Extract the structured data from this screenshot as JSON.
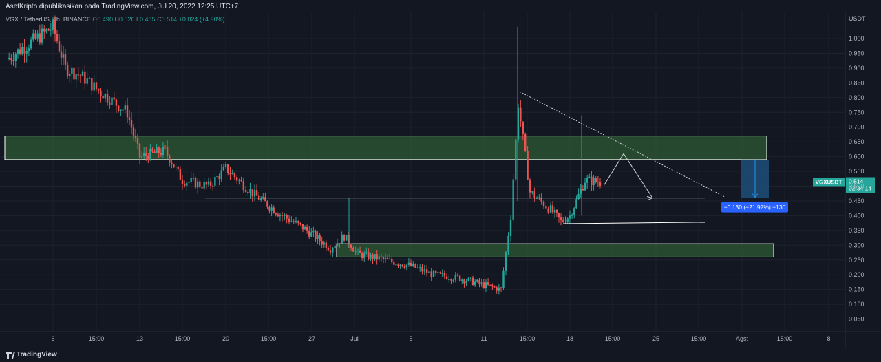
{
  "header": {
    "publisher": "AsetKripto dipublikasikan pada TradingView.com, Jul 20, 2022 12:25 UTC+7"
  },
  "legend": {
    "symbol": "VGX / TetherUS, 4h, BINANCE",
    "o_label": "O",
    "o_value": "0.490",
    "h_label": "H",
    "h_value": "0.526",
    "l_label": "L",
    "l_value": "0.485",
    "c_label": "C",
    "c_value": "0.514",
    "change": "+0.024 (+4.90%)"
  },
  "price_axis": {
    "currency": "USDT",
    "ticks": [
      "1.000",
      "0.950",
      "0.900",
      "0.850",
      "0.800",
      "0.750",
      "0.700",
      "0.650",
      "0.600",
      "0.550",
      "0.500",
      "0.450",
      "0.400",
      "0.350",
      "0.300",
      "0.250",
      "0.200",
      "0.150",
      "0.100",
      "0.050"
    ]
  },
  "time_axis": {
    "labels": [
      "6",
      "15:00",
      "13",
      "15:00",
      "20",
      "15:00",
      "27",
      "Jul",
      "5",
      "11",
      "15:00",
      "18",
      "15:00",
      "25",
      "15:00",
      "Agst",
      "15:00",
      "8"
    ]
  },
  "last_price": {
    "symbol": "VGXUSDT",
    "price": "0.514",
    "countdown": "02:34:14"
  },
  "measure_label": "−0.130 (−21.92%) −130",
  "footer": {
    "brand": "TradingView"
  },
  "colors": {
    "background": "#131722",
    "up": "#26a69a",
    "down": "#ef5350",
    "zone_fill": "#2e5a34",
    "measure_fill": "#1e4d78",
    "measure_label": "#2962ff"
  },
  "chart_data": {
    "type": "candlestick",
    "title": "VGX / TetherUS, 4h, BINANCE",
    "ylabel": "USDT",
    "ylim": [
      0.0,
      1.08
    ],
    "x_range": [
      "Jun 5",
      "Aug 8"
    ],
    "series_close_approx": [
      {
        "date": "Jun 5",
        "price": 0.93
      },
      {
        "date": "Jun 6",
        "price": 1.04
      },
      {
        "date": "Jun 7",
        "price": 0.9
      },
      {
        "date": "Jun 9",
        "price": 0.87
      },
      {
        "date": "Jun 10",
        "price": 0.83
      },
      {
        "date": "Jun 12",
        "price": 0.75
      },
      {
        "date": "Jun 13",
        "price": 0.6
      },
      {
        "date": "Jun 15",
        "price": 0.62
      },
      {
        "date": "Jun 16",
        "price": 0.52
      },
      {
        "date": "Jun 18",
        "price": 0.5
      },
      {
        "date": "Jun 20",
        "price": 0.56
      },
      {
        "date": "Jun 22",
        "price": 0.47
      },
      {
        "date": "Jun 24",
        "price": 0.4
      },
      {
        "date": "Jun 26",
        "price": 0.36
      },
      {
        "date": "Jun 28",
        "price": 0.29
      },
      {
        "date": "Jun 29",
        "price": 0.33
      },
      {
        "date": "Jul 1",
        "price": 0.27
      },
      {
        "date": "Jul 3",
        "price": 0.25
      },
      {
        "date": "Jul 5",
        "price": 0.23
      },
      {
        "date": "Jul 7",
        "price": 0.2
      },
      {
        "date": "Jul 9",
        "price": 0.19
      },
      {
        "date": "Jul 11",
        "price": 0.15
      },
      {
        "date": "Jul 12",
        "price": 0.4
      },
      {
        "date": "Jul 13",
        "price": 0.78
      },
      {
        "date": "Jul 14",
        "price": 0.48
      },
      {
        "date": "Jul 16",
        "price": 0.42
      },
      {
        "date": "Jul 17",
        "price": 0.38
      },
      {
        "date": "Jul 18",
        "price": 0.4
      },
      {
        "date": "Jul 19",
        "price": 0.52
      },
      {
        "date": "Jul 20",
        "price": 0.514
      }
    ],
    "zones": [
      {
        "name": "resistance",
        "low": 0.59,
        "high": 0.67
      },
      {
        "name": "support",
        "low": 0.26,
        "high": 0.305
      }
    ],
    "levels": [
      0.46,
      0.373
    ],
    "measure": {
      "from": 0.59,
      "to": 0.46,
      "change": "−0.130 (−21.92%) −130"
    }
  }
}
